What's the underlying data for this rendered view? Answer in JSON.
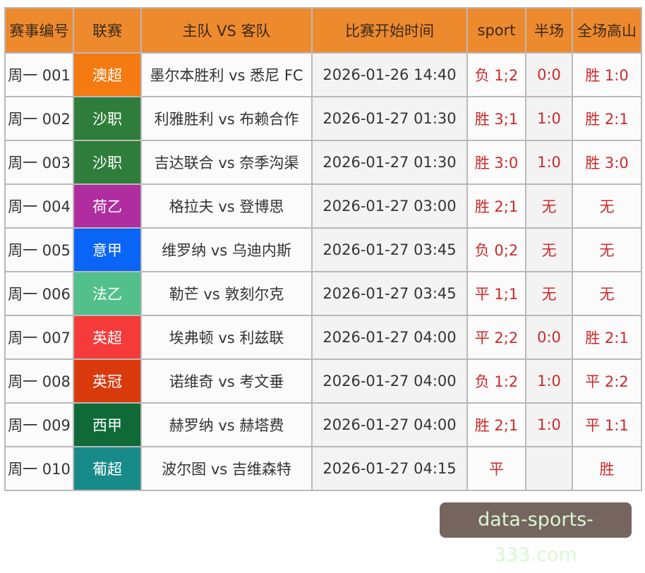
{
  "headers": [
    "赛事编号",
    "联赛",
    "主队 VS 客队",
    "比赛开始时间",
    "sport",
    "半场",
    "全场高山"
  ],
  "rows": [
    {
      "id": "周一 001",
      "league": "澳超",
      "league_color": "#f57a12",
      "match": "墨尔本胜利 vs 悉尼 FC",
      "time": "2026-01-26 14:40",
      "sport": "负 1;2",
      "half": "0:0",
      "full": "胜 1:0"
    },
    {
      "id": "周一 002",
      "league": "沙职",
      "league_color": "#2f7d3a",
      "match": "利雅胜利 vs 布赖合作",
      "time": "2026-01-27 01:30",
      "sport": "胜 3;1",
      "half": "1:0",
      "full": "胜 2:1"
    },
    {
      "id": "周一 003",
      "league": "沙职",
      "league_color": "#2f7d3a",
      "match": "吉达联合 vs 奈季沟渠",
      "time": "2026-01-27 01:30",
      "sport": "胜 3:0",
      "half": "1:0",
      "full": "胜 3:0"
    },
    {
      "id": "周一 004",
      "league": "荷乙",
      "league_color": "#b02da0",
      "match": "格拉夫 vs 登博思",
      "time": "2026-01-27 03:00",
      "sport": "胜 2;1",
      "half": "无",
      "full": "无"
    },
    {
      "id": "周一 005",
      "league": "意甲",
      "league_color": "#0a64f5",
      "match": "维罗纳 vs 乌迪内斯",
      "time": "2026-01-27 03:45",
      "sport": "负 0;2",
      "half": "无",
      "full": "无"
    },
    {
      "id": "周一 006",
      "league": "法乙",
      "league_color": "#52c08a",
      "match": "勒芒 vs 敦刻尔克",
      "time": "2026-01-27 03:45",
      "sport": "平 1;1",
      "half": "无",
      "full": "无"
    },
    {
      "id": "周一 007",
      "league": "英超",
      "league_color": "#f53a3a",
      "match": "埃弗顿 vs 利兹联",
      "time": "2026-01-27 04:00",
      "sport": "平 2;2",
      "half": "0:0",
      "full": "胜 2:1"
    },
    {
      "id": "周一 008",
      "league": "英冠",
      "league_color": "#d93a0c",
      "match": "诺维奇 vs 考文垂",
      "time": "2026-01-27 04:00",
      "sport": "负 1:2",
      "half": "1:0",
      "full": "平 2:2"
    },
    {
      "id": "周一 009",
      "league": "西甲",
      "league_color": "#0f6a38",
      "match": "赫罗纳 vs 赫塔费",
      "time": "2026-01-27 04:00",
      "sport": "胜 2;1",
      "half": "1:0",
      "full": "平 1:1"
    },
    {
      "id": "周一 010",
      "league": "葡超",
      "league_color": "#188a8a",
      "match": "波尔图 vs 吉维森特",
      "time": "2026-01-27 04:15",
      "sport": "平",
      "half": "",
      "full": "胜"
    }
  ],
  "watermark": "data-sports-333.com"
}
